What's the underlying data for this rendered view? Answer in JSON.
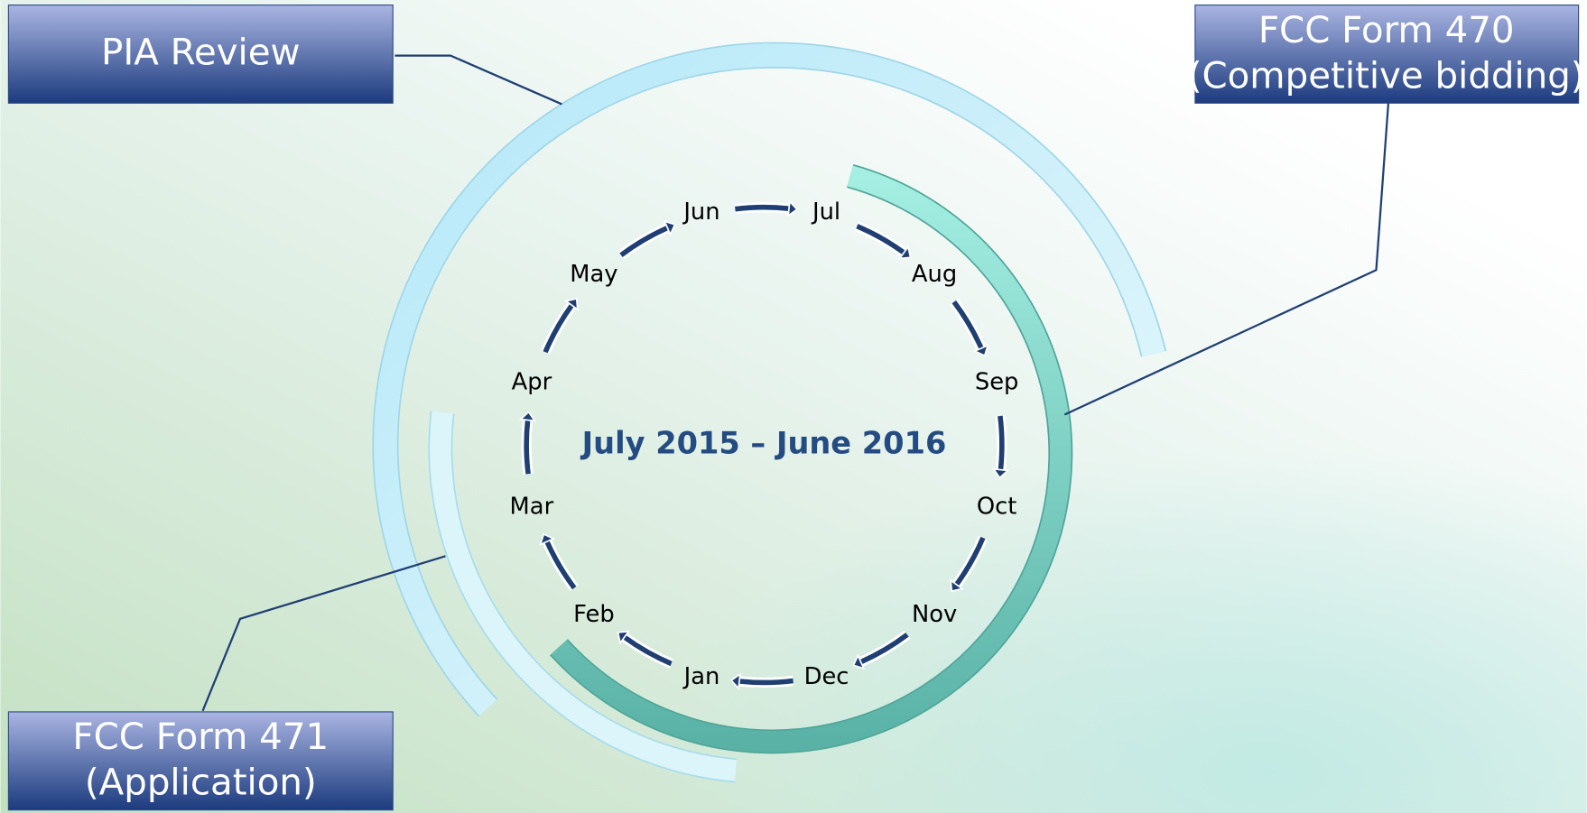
{
  "boxes": [
    {
      "lines": [
        "PIA Review"
      ]
    },
    {
      "lines": [
        "FCC Form 470",
        "(Competitive bidding)"
      ]
    },
    {
      "lines": [
        "FCC Form 471",
        "(Application)"
      ]
    }
  ],
  "center": {
    "title": "July 2015 – June 2016"
  },
  "months": [
    "Jul",
    "Aug",
    "Sep",
    "Oct",
    "Nov",
    "Dec",
    "Jan",
    "Feb",
    "Mar",
    "Apr",
    "May",
    "Jun"
  ]
}
